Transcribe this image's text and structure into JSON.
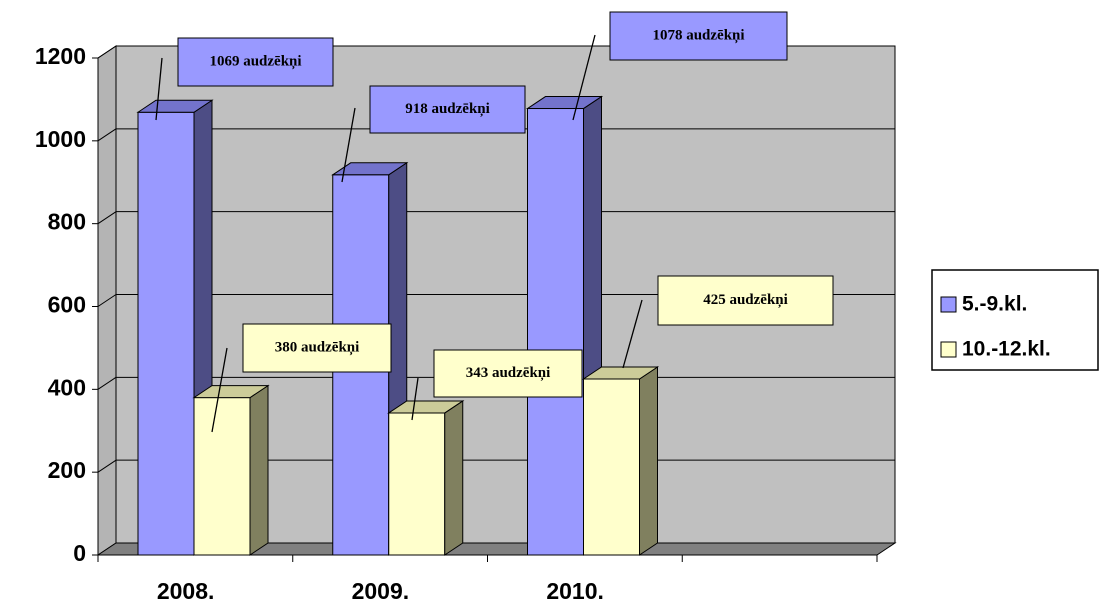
{
  "chart_data": {
    "type": "bar3d",
    "categories": [
      "2008.",
      "2009.",
      "2010.",
      null
    ],
    "series": [
      {
        "name": "5.-9.kl.",
        "color": "#9999ff",
        "side_color": "#4d4d85",
        "top_color": "#7373cc",
        "values": [
          1069,
          918,
          1078,
          null
        ],
        "value_labels": [
          "1069 audzēkņi",
          "918 audzēkņi",
          "1078 audzēkņi",
          null
        ]
      },
      {
        "name": "10.-12.kl.",
        "color": "#ffffcc",
        "side_color": "#80805f",
        "top_color": "#cccc99",
        "values": [
          380,
          343,
          425,
          null
        ],
        "value_labels": [
          "380 audzēkņi",
          "343 audzēkņi",
          "425 audzēkņi",
          null
        ]
      }
    ],
    "ylim": [
      0,
      1200
    ],
    "yticks": [
      0,
      200,
      400,
      600,
      800,
      1000,
      1200
    ],
    "grid": true,
    "legend": "right"
  }
}
